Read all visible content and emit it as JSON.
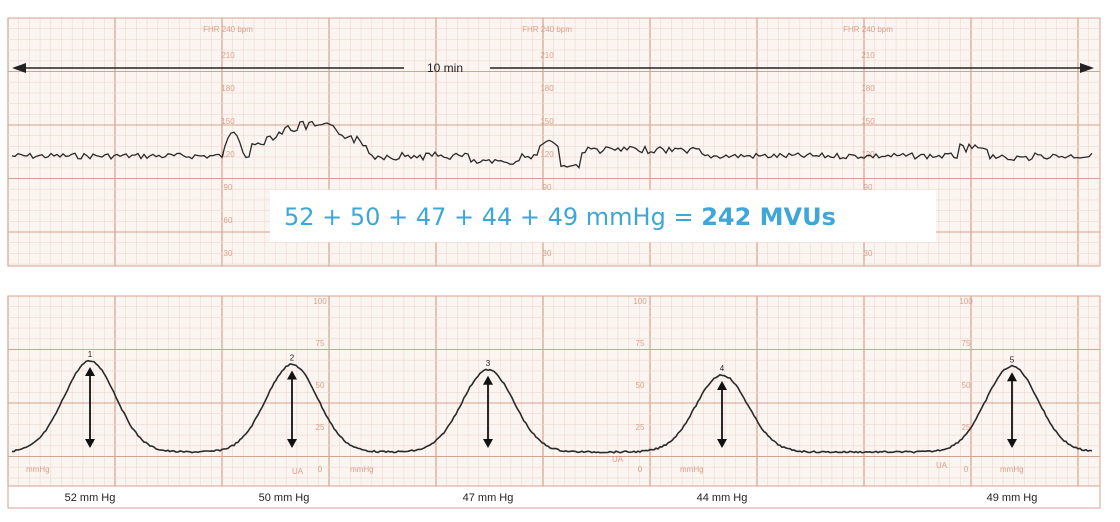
{
  "top_strip": {
    "header_labels": [
      "FHR 240 bpm",
      "FHR 240 bpm",
      "FHR 240 bpm"
    ],
    "scale_labels": [
      "210",
      "180",
      "150",
      "120",
      "90",
      "60",
      "30"
    ],
    "duration_label": "10 min"
  },
  "formula": {
    "prefix": "52 + 50 + 47 + 44 + 49 mmHg = ",
    "result": "242 MVUs"
  },
  "bottom_strip": {
    "scale_labels": [
      "100",
      "75",
      "50",
      "25",
      "0"
    ],
    "unit_label": "mmHg",
    "ua_label": "UA",
    "peak_numbers": [
      "1",
      "2",
      "3",
      "4",
      "5"
    ]
  },
  "chart_data": {
    "type": "line",
    "xlabel": "",
    "ylabel": "",
    "series": [
      {
        "name": "",
        "peaks": [
          52,
          50,
          47,
          44,
          49
        ],
        "labels": [
          "52 mm Hg",
          "50 mm Hg",
          "47 mm Hg",
          "44 mm Hg",
          "49 mm Hg"
        ]
      }
    ],
    "duration_minutes": 10,
    "total_mvus": 242
  },
  "colors": {
    "paper": "#fbf5f1",
    "grid_minor": "#f0d8cf",
    "grid_major": "#d4a290",
    "trace": "#2a2a2a",
    "formula": "#3fa6d8"
  }
}
